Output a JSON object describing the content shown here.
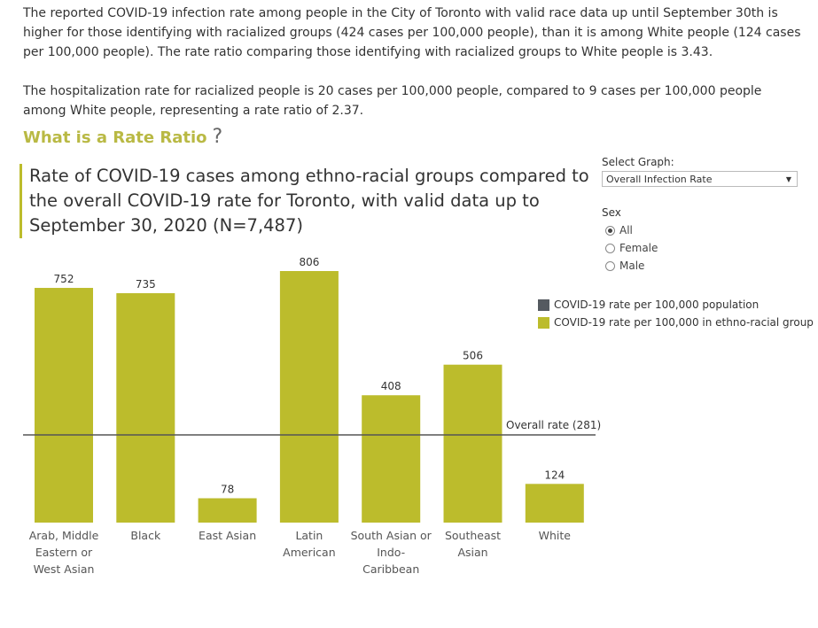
{
  "intro": {
    "para1": "The reported COVID-19 infection rate among people in the City of Toronto with valid race data up until September 30th is higher for those identifying with racialized groups (424 cases per 100,000 people), than it is among White people (124 cases per 100,000 people). The rate ratio comparing those identifying with racialized groups to White people is 3.43.",
    "para2": "The hospitalization rate for racialized people is 20 cases per 100,000 people, compared to 9 cases per 100,000 people among White people, representing a rate ratio of 2.37."
  },
  "rate_ratio_link": {
    "label": "What is a Rate Ratio",
    "icon": "question-icon",
    "symbol": "?"
  },
  "controls": {
    "select_label": "Select Graph:",
    "select_value": "Overall Infection Rate",
    "sex_label": "Sex",
    "sex_options": [
      {
        "label": "All",
        "selected": true
      },
      {
        "label": "Female",
        "selected": false
      },
      {
        "label": "Male",
        "selected": false
      }
    ]
  },
  "legend": {
    "items": [
      {
        "label": "COVID-19 rate per 100,000 population",
        "color": "#555a60"
      },
      {
        "label": "COVID-19 rate per 100,000 in ethno-racial group",
        "color": "#bcbc2c"
      }
    ]
  },
  "chart_data": {
    "type": "bar",
    "title": "Rate of COVID-19 cases among ethno-racial groups compared to the overall COVID-19 rate for Toronto, with valid data up to September 30, 2020 (N=7,487)",
    "categories": [
      "Arab, Middle Eastern or West Asian",
      "Black",
      "East Asian",
      "Latin American",
      "South Asian or Indo-Caribbean",
      "Southeast Asian",
      "White"
    ],
    "category_lines": [
      [
        "Arab, Middle",
        "Eastern or",
        "West Asian"
      ],
      [
        "Black"
      ],
      [
        "East Asian"
      ],
      [
        "Latin",
        "American"
      ],
      [
        "South Asian or",
        "Indo-",
        "Caribbean"
      ],
      [
        "Southeast",
        "Asian"
      ],
      [
        "White"
      ]
    ],
    "values": [
      752,
      735,
      78,
      806,
      408,
      506,
      124
    ],
    "value_labels": [
      "752",
      "735",
      "78",
      "806",
      "408",
      "506",
      "124"
    ],
    "reference_line": {
      "value": 281,
      "label": "Overall rate (281)"
    },
    "bar_color": "#bcbc2c",
    "line_color": "#555555",
    "ylim": [
      0,
      806
    ],
    "xlabel": "",
    "ylabel": ""
  }
}
